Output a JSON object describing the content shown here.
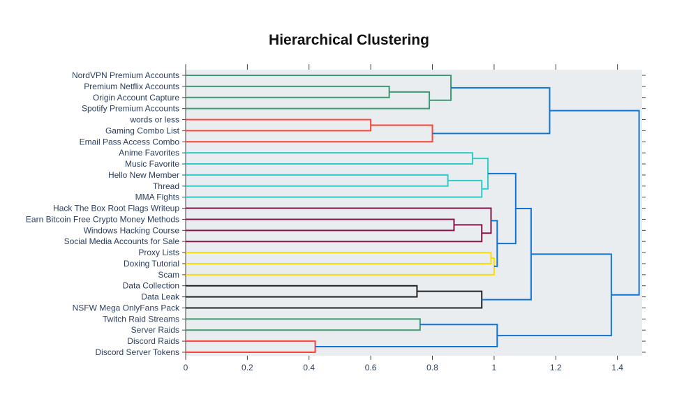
{
  "chart_data": {
    "type": "dendrogram",
    "title": "Hierarchical Clustering",
    "xlabel": "",
    "ylabel": "",
    "xlim": [
      0,
      1.48
    ],
    "xticks": [
      0,
      0.2,
      0.4,
      0.6,
      0.8,
      1,
      1.2,
      1.4
    ],
    "xtick_labels": [
      "0",
      "0.2",
      "0.4",
      "0.6",
      "0.8",
      "1",
      "1.2",
      "1.4"
    ],
    "grid": false,
    "legend": "none",
    "plot_background": "#e9edf0",
    "colors": {
      "green": "#3d9970",
      "red": "#ff4136",
      "teal": "#2ecccc",
      "maroon": "#85144b",
      "yellow": "#ffdc00",
      "black": "#222222",
      "link": "#0f74d6"
    },
    "leaves": [
      "NordVPN Premium Accounts",
      "Premium Netflix Accounts",
      "Origin Account Capture",
      "Spotify Premium Accounts",
      "words or less",
      "Gaming Combo List",
      "Email Pass Access Combo",
      "Anime Favorites",
      "Music Favorite",
      "Hello New Member",
      "Thread",
      "MMA Fights",
      "Hack The Box Root Flags Writeup",
      "Earn Bitcoin Free Crypto Money Methods",
      "Windows Hacking Course",
      "Social Media Accounts for Sale",
      "Proxy Lists",
      "Doxing Tutorial",
      "Scam",
      "Data Collection",
      "Data Leak",
      "NSFW Mega OnlyFans Pack",
      "Twitch Raid Streams",
      "Server Raids",
      "Discord Raids",
      "Discord Server Tokens"
    ],
    "merges": [
      {
        "children": [
          "L1",
          "L2"
        ],
        "height": 0.66,
        "color": "green"
      },
      {
        "children": [
          "M0",
          "L3"
        ],
        "height": 0.79,
        "color": "green"
      },
      {
        "children": [
          "L0",
          "M1"
        ],
        "height": 0.86,
        "color": "green"
      },
      {
        "children": [
          "L4",
          "L5"
        ],
        "height": 0.6,
        "color": "red"
      },
      {
        "children": [
          "M3",
          "L6"
        ],
        "height": 0.8,
        "color": "red"
      },
      {
        "children": [
          "M2",
          "M4"
        ],
        "height": 1.18,
        "color": "link"
      },
      {
        "children": [
          "L9",
          "L10"
        ],
        "height": 0.85,
        "color": "teal"
      },
      {
        "children": [
          "M6",
          "L11"
        ],
        "height": 0.96,
        "color": "teal"
      },
      {
        "children": [
          "L7",
          "L8"
        ],
        "height": 0.93,
        "color": "teal"
      },
      {
        "children": [
          "M8",
          "M7"
        ],
        "height": 0.98,
        "color": "teal"
      },
      {
        "children": [
          "L13",
          "L14"
        ],
        "height": 0.87,
        "color": "maroon"
      },
      {
        "children": [
          "M10",
          "L15"
        ],
        "height": 0.96,
        "color": "maroon"
      },
      {
        "children": [
          "L12",
          "M11"
        ],
        "height": 0.99,
        "color": "maroon"
      },
      {
        "children": [
          "L16",
          "L17"
        ],
        "height": 0.99,
        "color": "yellow"
      },
      {
        "children": [
          "M13",
          "L18"
        ],
        "height": 1.0,
        "color": "yellow"
      },
      {
        "children": [
          "M12",
          "M14"
        ],
        "height": 1.01,
        "color": "link"
      },
      {
        "children": [
          "M9",
          "M15"
        ],
        "height": 1.07,
        "color": "link"
      },
      {
        "children": [
          "L19",
          "L20"
        ],
        "height": 0.75,
        "color": "black"
      },
      {
        "children": [
          "M17",
          "L21"
        ],
        "height": 0.96,
        "color": "black"
      },
      {
        "children": [
          "M16",
          "M18"
        ],
        "height": 1.12,
        "color": "link"
      },
      {
        "children": [
          "L22",
          "L23"
        ],
        "height": 0.76,
        "color": "green"
      },
      {
        "children": [
          "L24",
          "L25"
        ],
        "height": 0.42,
        "color": "red"
      },
      {
        "children": [
          "M20",
          "M21"
        ],
        "height": 1.01,
        "color": "link"
      },
      {
        "children": [
          "M19",
          "M22"
        ],
        "height": 1.38,
        "color": "link"
      },
      {
        "children": [
          "M5",
          "M23"
        ],
        "height": 1.47,
        "color": "link"
      }
    ]
  }
}
